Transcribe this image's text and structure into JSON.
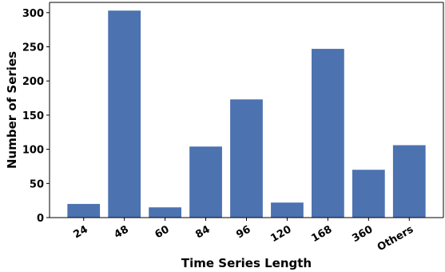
{
  "chart_data": {
    "type": "bar",
    "title": "",
    "xlabel": "Time Series Length",
    "ylabel": "Number of Series",
    "categories": [
      "24",
      "48",
      "60",
      "84",
      "96",
      "120",
      "168",
      "360",
      "Others"
    ],
    "values": [
      20,
      303,
      15,
      104,
      173,
      22,
      247,
      70,
      106
    ],
    "ylim": [
      0,
      315
    ],
    "yticks": [
      0,
      50,
      100,
      150,
      200,
      250,
      300
    ],
    "bar_color": "#4c72b0",
    "grid": false,
    "legend": "none"
  }
}
